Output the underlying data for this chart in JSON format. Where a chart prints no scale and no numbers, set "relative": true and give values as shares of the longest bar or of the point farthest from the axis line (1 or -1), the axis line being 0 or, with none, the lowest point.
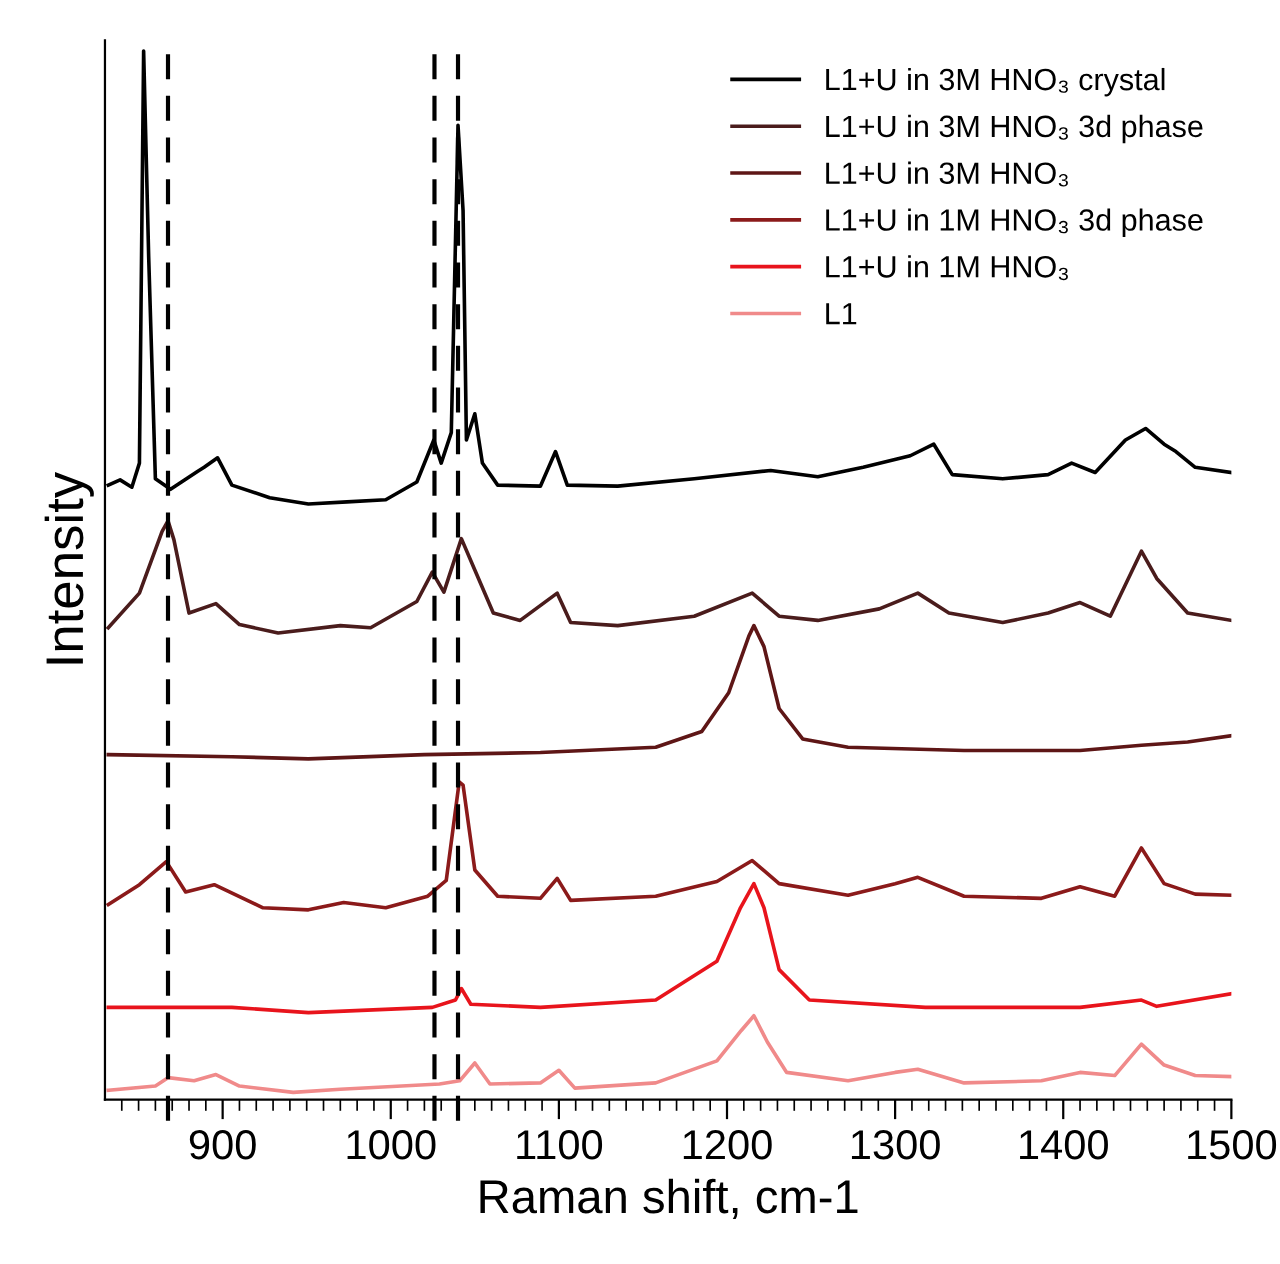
{
  "chart_data": {
    "type": "line",
    "relative": true,
    "xlabel": "Raman shift, cm-1",
    "ylabel": "Intensity",
    "xlim": [
      830,
      1500
    ],
    "xticks": [
      900,
      1000,
      1100,
      1200,
      1300,
      1400,
      1500,
      {
        "value": 840,
        "label": null
      },
      {
        "value": 850,
        "label": null
      },
      {
        "value": 860,
        "label": null
      },
      {
        "value": 870,
        "label": null
      },
      {
        "value": 880,
        "label": null
      },
      {
        "value": 890,
        "label": null
      },
      {
        "value": 910,
        "label": null
      },
      {
        "value": 920,
        "label": null
      },
      {
        "value": 930,
        "label": null
      },
      {
        "value": 940,
        "label": null
      },
      {
        "value": 950,
        "label": null
      },
      {
        "value": 960,
        "label": null
      },
      {
        "value": 970,
        "label": null
      },
      {
        "value": 980,
        "label": null
      },
      {
        "value": 990,
        "label": null
      },
      {
        "value": 1010,
        "label": null
      },
      {
        "value": 1020,
        "label": null
      },
      {
        "value": 1030,
        "label": null
      },
      {
        "value": 1040,
        "label": null
      },
      {
        "value": 1050,
        "label": null
      },
      {
        "value": 1060,
        "label": null
      },
      {
        "value": 1070,
        "label": null
      },
      {
        "value": 1080,
        "label": null
      },
      {
        "value": 1090,
        "label": null
      },
      {
        "value": 1110,
        "label": null
      },
      {
        "value": 1120,
        "label": null
      },
      {
        "value": 1130,
        "label": null
      },
      {
        "value": 1140,
        "label": null
      },
      {
        "value": 1150,
        "label": null
      },
      {
        "value": 1160,
        "label": null
      },
      {
        "value": 1170,
        "label": null
      },
      {
        "value": 1180,
        "label": null
      },
      {
        "value": 1190,
        "label": null
      },
      {
        "value": 1210,
        "label": null
      },
      {
        "value": 1220,
        "label": null
      },
      {
        "value": 1230,
        "label": null
      },
      {
        "value": 1240,
        "label": null
      },
      {
        "value": 1250,
        "label": null
      },
      {
        "value": 1260,
        "label": null
      },
      {
        "value": 1270,
        "label": null
      },
      {
        "value": 1280,
        "label": null
      },
      {
        "value": 1290,
        "label": null
      },
      {
        "value": 1310,
        "label": null
      },
      {
        "value": 1320,
        "label": null
      },
      {
        "value": 1330,
        "label": null
      },
      {
        "value": 1340,
        "label": null
      },
      {
        "value": 1350,
        "label": null
      },
      {
        "value": 1360,
        "label": null
      },
      {
        "value": 1370,
        "label": null
      },
      {
        "value": 1380,
        "label": null
      },
      {
        "value": 1390,
        "label": null
      },
      {
        "value": 1410,
        "label": null
      },
      {
        "value": 1420,
        "label": null
      },
      {
        "value": 1430,
        "label": null
      },
      {
        "value": 1440,
        "label": null
      },
      {
        "value": 1450,
        "label": null
      },
      {
        "value": 1460,
        "label": null
      },
      {
        "value": 1470,
        "label": null
      },
      {
        "value": 1480,
        "label": null
      },
      {
        "value": 1490,
        "label": null
      }
    ],
    "grid": false,
    "legend": "top right",
    "line_style": "solid",
    "marker": "none",
    "ref_lines": [
      {
        "axis": "x",
        "value": 867.5,
        "color": "#000000",
        "line_style": "dashed"
      },
      {
        "axis": "x",
        "value": 1026,
        "color": "#000000",
        "line_style": "dashed"
      },
      {
        "axis": "x",
        "value": 1040,
        "color": "#000000",
        "line_style": "dashed"
      }
    ],
    "series": [
      {
        "name": "L1+U in 3M HNO₃ crystal",
        "color": "#000000",
        "x": [
          832,
          839,
          846,
          850.5,
          853,
          856,
          860,
          869,
          885,
          889,
          897,
          905.5,
          928,
          951,
          974,
          997,
          1015.5,
          1025.6,
          1030,
          1036,
          1040,
          1043,
          1045,
          1050,
          1054.5,
          1063.6,
          1089,
          1098,
          1105,
          1135,
          1180.5,
          1226,
          1254,
          1281,
          1309,
          1323,
          1334,
          1364,
          1391,
          1405,
          1419,
          1437,
          1449,
          1460,
          1467,
          1478.5,
          1500
        ],
        "values": [
          0.586,
          0.591,
          0.584,
          0.607,
          1.0,
          0.804,
          0.592,
          0.582,
          0.599,
          0.603,
          0.612,
          0.586,
          0.574,
          0.568,
          0.57,
          0.572,
          0.589,
          0.629,
          0.607,
          0.636,
          0.929,
          0.848,
          0.629,
          0.654,
          0.607,
          0.586,
          0.585,
          0.618,
          0.586,
          0.585,
          0.592,
          0.6,
          0.594,
          0.603,
          0.614,
          0.625,
          0.596,
          0.592,
          0.596,
          0.607,
          0.598,
          0.629,
          0.64,
          0.625,
          0.618,
          0.603,
          0.598
        ]
      },
      {
        "name": "L1+U in 3M HNO₃ 3d phase",
        "color": "#4a1c1c",
        "x": [
          832,
          850.5,
          864,
          867.5,
          871,
          880,
          896,
          910,
          933,
          970,
          988,
          1015.5,
          1024.7,
          1031.6,
          1042,
          1050,
          1061,
          1077,
          1099,
          1107,
          1135,
          1180.5,
          1215,
          1231,
          1254,
          1290.6,
          1313.5,
          1332,
          1364,
          1391,
          1410,
          1428,
          1446.5,
          1455.6,
          1474,
          1500
        ],
        "values": [
          0.45,
          0.483,
          0.542,
          0.552,
          0.534,
          0.464,
          0.473,
          0.453,
          0.445,
          0.452,
          0.45,
          0.475,
          0.503,
          0.484,
          0.535,
          0.505,
          0.464,
          0.457,
          0.483,
          0.455,
          0.452,
          0.461,
          0.483,
          0.461,
          0.457,
          0.468,
          0.483,
          0.464,
          0.455,
          0.464,
          0.474,
          0.461,
          0.523,
          0.497,
          0.464,
          0.457
        ]
      },
      {
        "name": "L1+U in 3M HNO₃",
        "color": "#5e1616",
        "x": [
          832,
          905.5,
          951,
          1020,
          1089,
          1157.6,
          1185,
          1201,
          1213,
          1216,
          1222,
          1231,
          1245,
          1272,
          1341,
          1410,
          1446.5,
          1474,
          1500
        ],
        "values": [
          0.329,
          0.327,
          0.325,
          0.329,
          0.331,
          0.336,
          0.351,
          0.388,
          0.442,
          0.452,
          0.432,
          0.373,
          0.344,
          0.336,
          0.333,
          0.333,
          0.338,
          0.341,
          0.347
        ]
      },
      {
        "name": "L1+U in 1M HNO₃ 3d phase",
        "color": "#8b1a1a",
        "x": [
          832,
          850.5,
          866.5,
          878,
          895,
          924,
          951,
          972,
          997,
          1022,
          1033,
          1040.7,
          1043,
          1050,
          1063.6,
          1089,
          1099,
          1107,
          1157.6,
          1194,
          1215,
          1231,
          1272,
          1300,
          1313.5,
          1341,
          1387,
          1410,
          1430.6,
          1446.5,
          1460,
          1478.5,
          1500
        ],
        "values": [
          0.186,
          0.205,
          0.227,
          0.198,
          0.205,
          0.183,
          0.181,
          0.188,
          0.183,
          0.194,
          0.209,
          0.303,
          0.3,
          0.219,
          0.194,
          0.192,
          0.211,
          0.19,
          0.194,
          0.208,
          0.228,
          0.206,
          0.195,
          0.206,
          0.212,
          0.194,
          0.192,
          0.203,
          0.194,
          0.24,
          0.206,
          0.196,
          0.195
        ]
      },
      {
        "name": "L1+U in 1M HNO₃",
        "color": "#e8141c",
        "x": [
          832,
          905.5,
          951,
          1024.7,
          1038.5,
          1042,
          1047.6,
          1089,
          1157.6,
          1194,
          1208,
          1216,
          1222,
          1231,
          1249,
          1318,
          1410,
          1446.5,
          1455.6,
          1500
        ],
        "values": [
          0.088,
          0.088,
          0.083,
          0.088,
          0.095,
          0.106,
          0.091,
          0.088,
          0.095,
          0.132,
          0.183,
          0.206,
          0.183,
          0.124,
          0.095,
          0.088,
          0.088,
          0.095,
          0.089,
          0.101
        ]
      },
      {
        "name": "L1",
        "color": "#f08a8a",
        "x": [
          832,
          860,
          867.5,
          883,
          896,
          910,
          942,
          970,
          1029,
          1041,
          1050,
          1059,
          1089,
          1100,
          1109.5,
          1157.6,
          1194,
          1208.5,
          1216,
          1224,
          1235.5,
          1272,
          1300,
          1313.5,
          1341,
          1387,
          1410,
          1430.6,
          1446.5,
          1460,
          1478.5,
          1500
        ],
        "values": [
          0.009,
          0.013,
          0.021,
          0.018,
          0.024,
          0.013,
          0.007,
          0.01,
          0.015,
          0.018,
          0.035,
          0.015,
          0.016,
          0.028,
          0.011,
          0.016,
          0.037,
          0.066,
          0.08,
          0.055,
          0.026,
          0.018,
          0.026,
          0.029,
          0.016,
          0.018,
          0.026,
          0.023,
          0.053,
          0.033,
          0.023,
          0.022
        ]
      }
    ]
  }
}
